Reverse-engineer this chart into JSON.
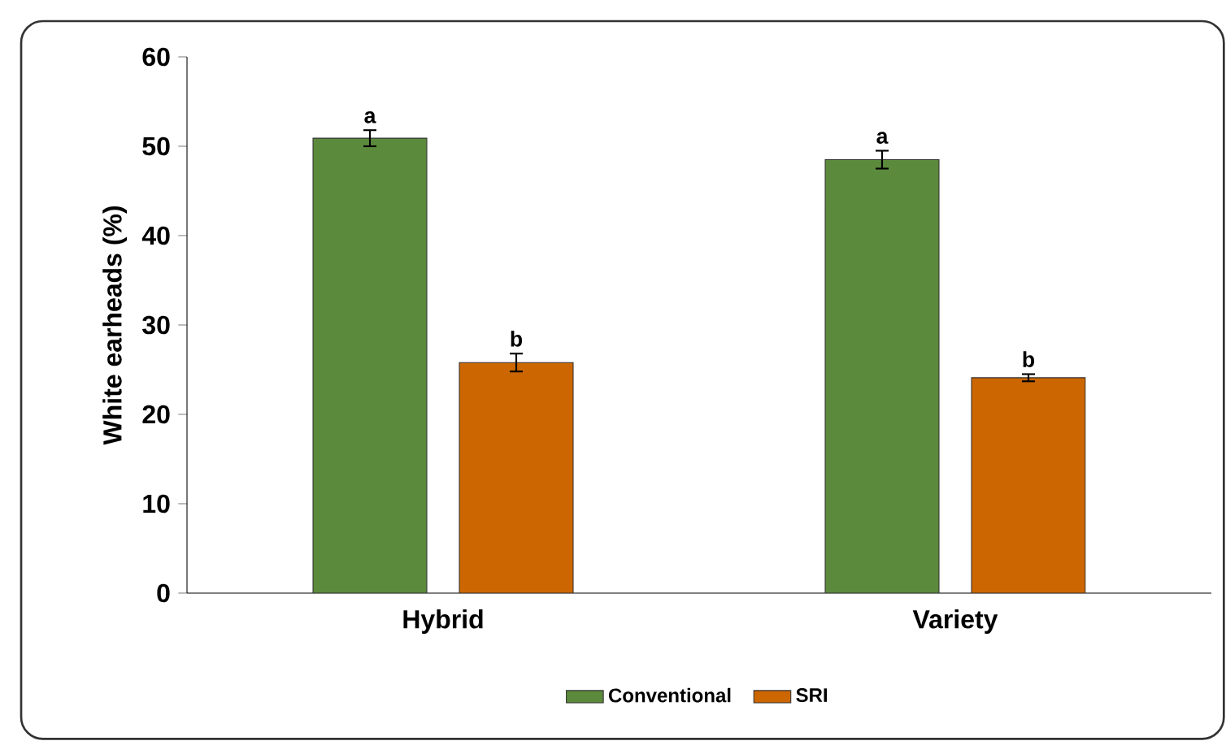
{
  "chart_data": {
    "type": "bar",
    "ylabel": "White earheads (%)",
    "categories": [
      "Hybrid",
      "Variety"
    ],
    "series": [
      {
        "name": "Conventional",
        "color": "#5b8a3c",
        "values": [
          50.9,
          48.5
        ],
        "errors": [
          0.9,
          1.0
        ]
      },
      {
        "name": "SRI",
        "color": "#cc6600",
        "values": [
          25.8,
          24.1
        ],
        "errors": [
          1.0,
          0.4
        ]
      }
    ],
    "ylim": [
      0,
      60
    ],
    "yticks": [
      0,
      10,
      20,
      30,
      40,
      50,
      60
    ],
    "grid": false,
    "legend": "bottom",
    "annotations": [
      "a",
      "b",
      "a",
      "b"
    ]
  }
}
